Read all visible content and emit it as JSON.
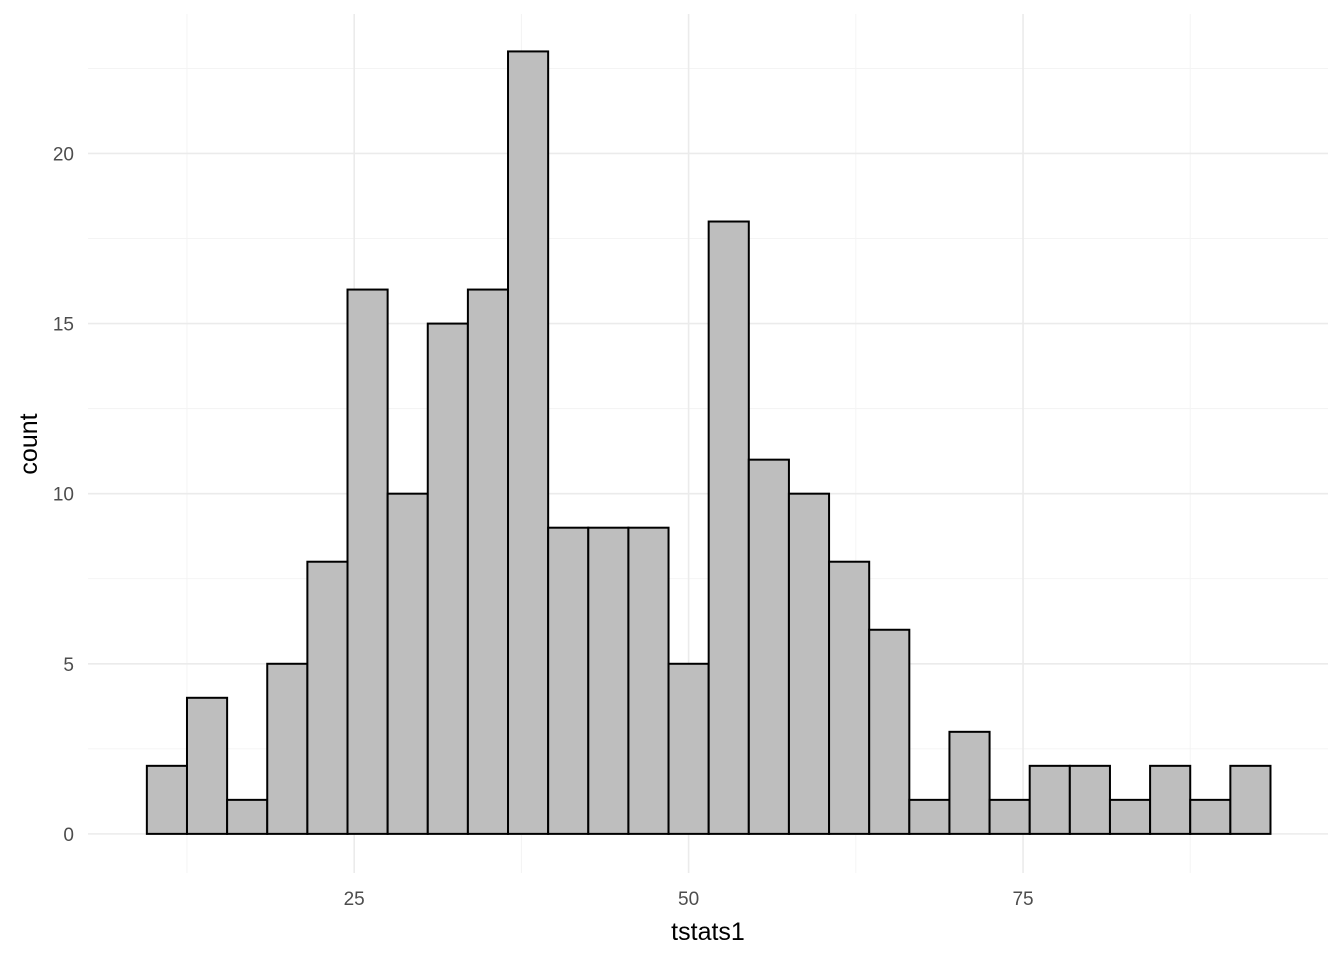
{
  "chart_data": {
    "type": "bar",
    "subtype": "histogram",
    "xlabel": "tstats1",
    "ylabel": "count",
    "xlim": [
      5.1,
      97.8
    ],
    "ylim": [
      -1.15,
      24.1
    ],
    "x_ticks": [
      25,
      50,
      75
    ],
    "y_ticks": [
      0,
      5,
      10,
      15,
      20
    ],
    "x_tick_labels": [
      "25",
      "50",
      "75"
    ],
    "y_tick_labels": [
      "0",
      "5",
      "10",
      "15",
      "20"
    ],
    "grid": true,
    "bin_width": 3,
    "bins": [
      {
        "x_start": 9.5,
        "x_end": 12.5,
        "count": 2
      },
      {
        "x_start": 12.5,
        "x_end": 15.5,
        "count": 4
      },
      {
        "x_start": 15.5,
        "x_end": 18.5,
        "count": 1
      },
      {
        "x_start": 18.5,
        "x_end": 21.5,
        "count": 5
      },
      {
        "x_start": 21.5,
        "x_end": 24.5,
        "count": 8
      },
      {
        "x_start": 24.5,
        "x_end": 27.5,
        "count": 16
      },
      {
        "x_start": 27.5,
        "x_end": 30.5,
        "count": 10
      },
      {
        "x_start": 30.5,
        "x_end": 33.5,
        "count": 15
      },
      {
        "x_start": 33.5,
        "x_end": 36.5,
        "count": 16
      },
      {
        "x_start": 36.5,
        "x_end": 39.5,
        "count": 23
      },
      {
        "x_start": 39.5,
        "x_end": 42.5,
        "count": 9
      },
      {
        "x_start": 42.5,
        "x_end": 45.5,
        "count": 9
      },
      {
        "x_start": 45.5,
        "x_end": 48.5,
        "count": 9
      },
      {
        "x_start": 48.5,
        "x_end": 51.5,
        "count": 5
      },
      {
        "x_start": 51.5,
        "x_end": 54.5,
        "count": 18
      },
      {
        "x_start": 54.5,
        "x_end": 57.5,
        "count": 11
      },
      {
        "x_start": 57.5,
        "x_end": 60.5,
        "count": 10
      },
      {
        "x_start": 60.5,
        "x_end": 63.5,
        "count": 8
      },
      {
        "x_start": 63.5,
        "x_end": 66.5,
        "count": 6
      },
      {
        "x_start": 66.5,
        "x_end": 69.5,
        "count": 1
      },
      {
        "x_start": 69.5,
        "x_end": 72.5,
        "count": 3
      },
      {
        "x_start": 72.5,
        "x_end": 75.5,
        "count": 1
      },
      {
        "x_start": 75.5,
        "x_end": 78.5,
        "count": 2
      },
      {
        "x_start": 78.5,
        "x_end": 81.5,
        "count": 2
      },
      {
        "x_start": 81.5,
        "x_end": 84.5,
        "count": 1
      },
      {
        "x_start": 84.5,
        "x_end": 87.5,
        "count": 2
      },
      {
        "x_start": 87.5,
        "x_end": 90.5,
        "count": 1
      },
      {
        "x_start": 90.5,
        "x_end": 93.5,
        "count": 2
      }
    ],
    "colors": {
      "bar_fill": "#bebebe",
      "bar_outline": "#000000",
      "grid": "#ebebeb",
      "background": "#ffffff"
    }
  }
}
